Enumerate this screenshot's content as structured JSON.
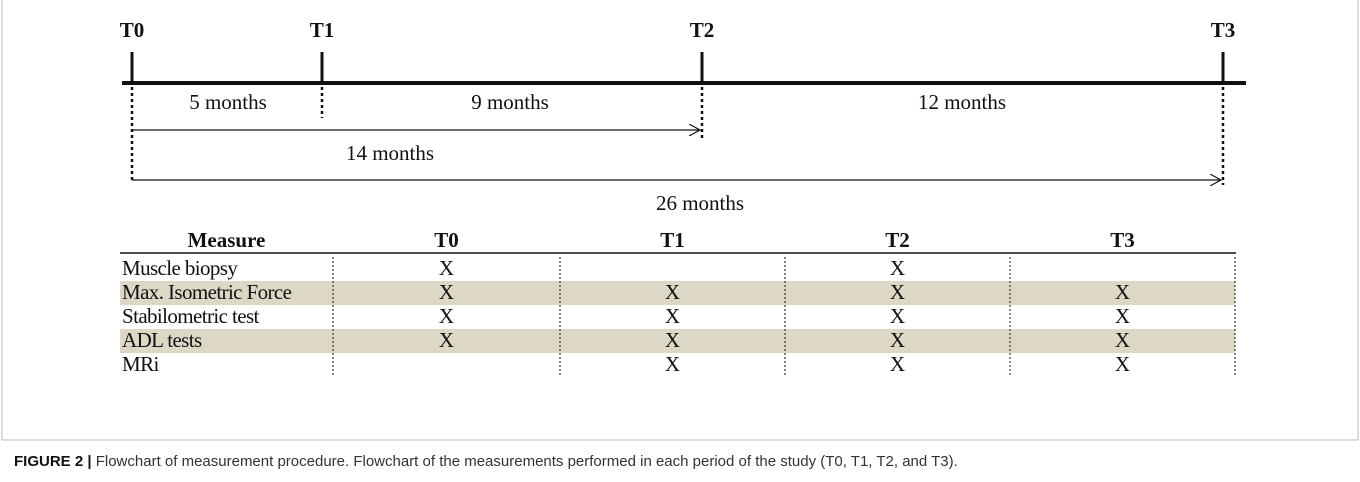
{
  "timeline": {
    "points": [
      "T0",
      "T1",
      "T2",
      "T3"
    ],
    "intervals": [
      "5 months",
      "9 months",
      "12 months"
    ],
    "spans": [
      "14 months",
      "26 months"
    ]
  },
  "table": {
    "header": [
      "Measure",
      "T0",
      "T1",
      "T2",
      "T3"
    ],
    "rows": [
      [
        "Muscle biopsy",
        "X",
        null,
        "X",
        null
      ],
      [
        "Max. Isometric Force",
        "X",
        "X",
        "X",
        "X"
      ],
      [
        "Stabilometric test",
        "X",
        "X",
        "X",
        "X"
      ],
      [
        "ADL tests",
        "X",
        "X",
        "X",
        "X"
      ],
      [
        "MRi",
        null,
        "X",
        "X",
        "X"
      ]
    ]
  },
  "caption": {
    "label": "FIGURE 2 |",
    "text": "Flowchart of measurement procedure. Flowchart of the measurements performed in each period of the study (T0, T1, T2, and T3)."
  }
}
